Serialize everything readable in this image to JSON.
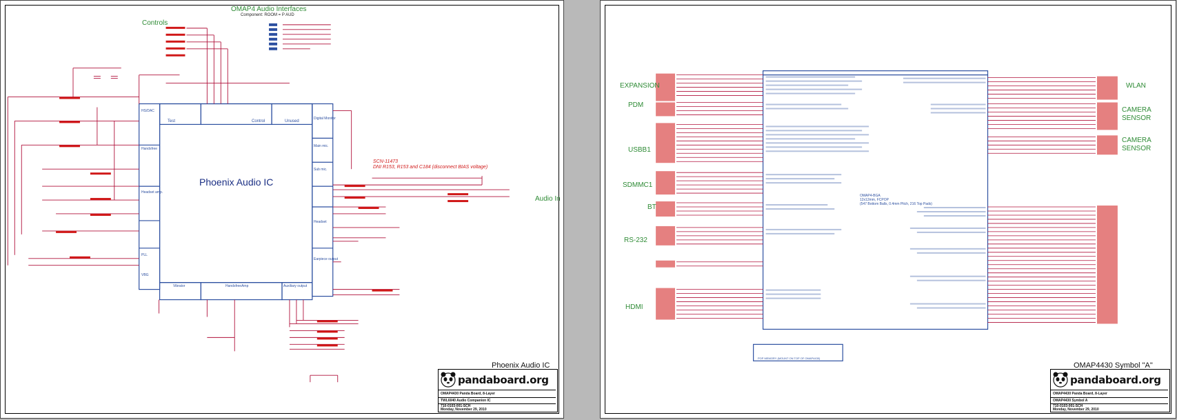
{
  "left_sheet": {
    "header_title": "OMAP4 Audio Interfaces",
    "header_subtitle": "Component: ROOM = P AUD",
    "controls_label": "Controls",
    "chip_title": "Phoenix Audio IC",
    "audio_in_label": "Audio In",
    "note_line1": "SCN-11473",
    "note_line2": "DNI R153, R153 and C184 (disconnect BIAS voltage)",
    "block_labels": [
      "Test",
      "Control",
      "Unused",
      "Vibrator",
      "HandsfreeAmp",
      "Auxiliary output",
      "Earpiece output",
      "Digital Monitor",
      "Main mic.",
      "Sub mic.",
      "Headset",
      "PLL",
      "VBG",
      "HS/DAC",
      "Handsfree",
      "Headset amp."
    ],
    "page_label": "Phoenix Audio IC",
    "title_block": {
      "brand": "pandaboard.org",
      "line1": "OMAP4430 Panda Board, 8-Layer",
      "line2": "TWL6040 Audio Companion IC",
      "line3": "710-0103-001-SCH",
      "line4": "Monday, November 29, 2010"
    }
  },
  "right_sheet": {
    "left_groups": [
      "EXPANSION",
      "PDM",
      "USBB1",
      "SDMMC1",
      "BT",
      "RS-232",
      "HDMI"
    ],
    "right_groups": [
      "WLAN",
      "CAMERA SENSOR",
      "CAMERA SENSOR"
    ],
    "chip_note_line1": "OMAP4-BGA",
    "chip_note_line2": "12x12mm, FCPOP",
    "chip_note_line3": "(547 Bottom Balls, 0.4mm Pitch, 216 Top Pads)",
    "memory_label": "POP MEMORY (MOUNT ON TOP OF OMAP4430)",
    "page_label": "OMAP4430 Symbol \"A\"",
    "title_block": {
      "brand": "pandaboard.org",
      "line1": "OMAP4430 Panda Board, 8-Layer",
      "line2": "OMAP4430 Symbol A",
      "line3": "710-0103-001-SCH",
      "line4": "Monday, November 29, 2010"
    }
  },
  "colors": {
    "wire": "#b0103a",
    "net_label": "#d01818",
    "part_outline": "#2c4fa0",
    "section_title": "#2e8b35"
  }
}
